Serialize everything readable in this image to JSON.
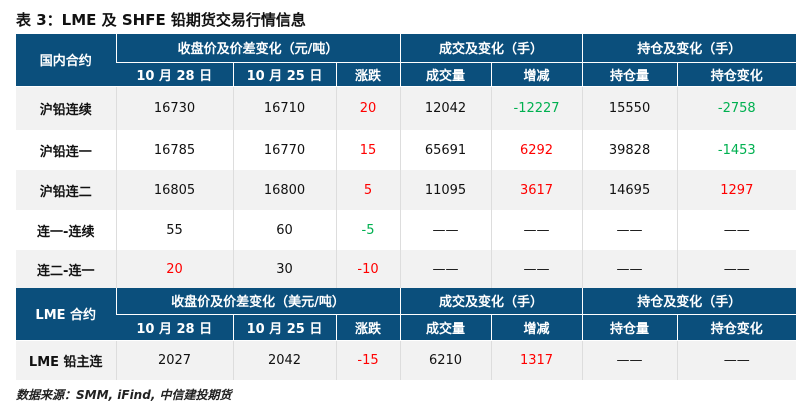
{
  "title": "表 3：LME 及 SHFE 铅期货交易行情信息",
  "colors": {
    "header_bg": "#0b4f7c",
    "up": "#ff0000",
    "down": "#00b050"
  },
  "domestic": {
    "header": {
      "contract": "国内合约",
      "price_group": "收盘价及价差变化（元/吨）",
      "volume_group": "成交及变化（手）",
      "oi_group": "持仓及变化（手）",
      "date1": "10 月 28 日",
      "date2": "10 月 25 日",
      "change": "涨跌",
      "volume": "成交量",
      "vol_change": "增减",
      "oi": "持仓量",
      "oi_change": "持仓变化"
    },
    "rows": [
      {
        "name": "沪铅连续",
        "p1": "16730",
        "p2": "16710",
        "chg": "20",
        "vol": "12042",
        "volchg": "-12227",
        "oi": "15550",
        "oichg": "-2758"
      },
      {
        "name": "沪铅连一",
        "p1": "16785",
        "p2": "16770",
        "chg": "15",
        "vol": "65691",
        "volchg": "6292",
        "oi": "39828",
        "oichg": "-1453"
      },
      {
        "name": "沪铅连二",
        "p1": "16805",
        "p2": "16800",
        "chg": "5",
        "vol": "11095",
        "volchg": "3617",
        "oi": "14695",
        "oichg": "1297"
      },
      {
        "name": "连一-连续",
        "p1": "55",
        "p2": "60",
        "chg": "-5",
        "vol": "——",
        "volchg": "——",
        "oi": "——",
        "oichg": "——"
      },
      {
        "name": "连二-连一",
        "p1": "20",
        "p2": "30",
        "chg": "-10",
        "vol": "——",
        "volchg": "——",
        "oi": "——",
        "oichg": "——"
      }
    ]
  },
  "lme": {
    "header": {
      "contract": "LME 合约",
      "price_group": "收盘价及价差变化（美元/吨）",
      "volume_group": "成交及变化（手）",
      "oi_group": "持仓及变化（手）",
      "date1": "10 月 28 日",
      "date2": "10 月 25 日",
      "change": "涨跌",
      "volume": "成交量",
      "vol_change": "增减",
      "oi": "持仓量",
      "oi_change": "持仓变化"
    },
    "rows": [
      {
        "name": "LME 铅主连",
        "p1": "2027",
        "p2": "2042",
        "chg": "-15",
        "vol": "6210",
        "volchg": "1317",
        "oi": "——",
        "oichg": "——"
      }
    ]
  },
  "source": "数据来源：SMM, iFind, 中信建投期货"
}
